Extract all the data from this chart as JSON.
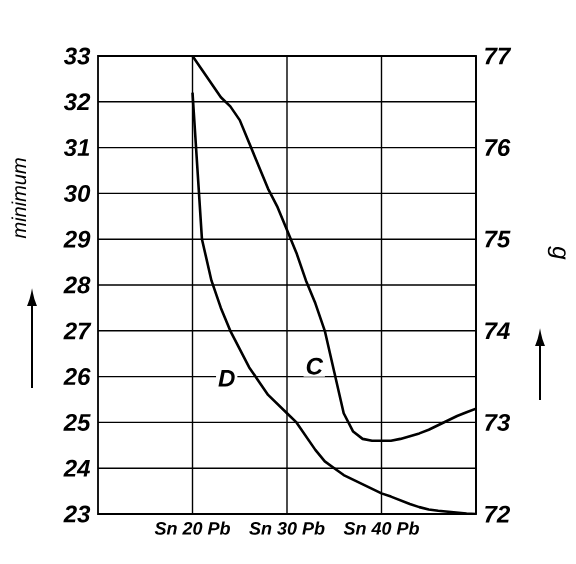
{
  "chart_data": {
    "type": "line",
    "ylabel": "minimum",
    "y2label": "g",
    "categories": [
      null,
      null,
      null,
      null,
      null,
      null,
      null,
      null,
      null,
      null,
      "Sn 20 Pb",
      null,
      null,
      null,
      null,
      null,
      null,
      null,
      null,
      null,
      "Sn 30 Pb",
      null,
      null,
      null,
      null,
      null,
      null,
      null,
      null,
      null,
      "Sn 40 Pb",
      null,
      null,
      null,
      null,
      null,
      null,
      null,
      null,
      null,
      null
    ],
    "ylim": [
      23,
      33
    ],
    "yticks": [
      23,
      24,
      25,
      26,
      27,
      28,
      29,
      30,
      31,
      32,
      33
    ],
    "y2lim": [
      72,
      77
    ],
    "y2ticks": [
      72,
      73,
      74,
      75,
      76,
      77
    ],
    "grid": true,
    "marker": "none",
    "line_style": "solid",
    "series": [
      {
        "name": "D",
        "color": "#000000",
        "values": [
          null,
          null,
          null,
          null,
          null,
          null,
          null,
          null,
          null,
          null,
          32.2,
          29.0,
          28.1,
          27.5,
          27.0,
          26.6,
          26.2,
          25.9,
          25.6,
          25.4,
          25.2,
          25.0,
          24.7,
          24.4,
          24.15,
          24.0,
          23.85,
          23.75,
          23.65,
          23.55,
          23.45,
          23.38,
          23.3,
          23.22,
          23.15,
          23.1,
          23.07,
          23.05,
          23.03,
          23.01,
          23.0
        ]
      },
      {
        "name": "C",
        "color": "#000000",
        "axis": "y2",
        "values": [
          null,
          null,
          null,
          null,
          null,
          null,
          null,
          null,
          null,
          null,
          77,
          76.85,
          76.7,
          76.55,
          76.45,
          76.3,
          76.05,
          75.8,
          75.55,
          75.35,
          75.1,
          74.85,
          74.55,
          74.3,
          74.0,
          73.55,
          73.1,
          72.9,
          72.82,
          72.8,
          72.8,
          72.8,
          72.82,
          72.85,
          72.88,
          72.92,
          72.97,
          73.02,
          73.07,
          73.11,
          73.15
        ]
      }
    ]
  }
}
